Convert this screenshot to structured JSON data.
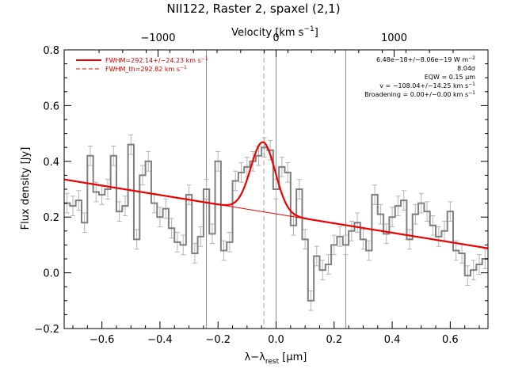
{
  "chart_data": {
    "type": "line",
    "title": "NII122, Raster 2, spaxel (2,1)",
    "xlabel": "λ−λ",
    "xlabel_sub": "rest",
    "xlabel_unit": " [μm]",
    "ylabel": "Flux density [Jy]",
    "top_axis_label": "Velocity [km s",
    "top_axis_label_sup": "−1",
    "top_axis_label_end": "]",
    "xlim": [
      -0.73,
      0.73
    ],
    "ylim": [
      -0.2,
      0.8
    ],
    "grid": false,
    "x_ticks": [
      -0.6,
      -0.4,
      -0.2,
      0.0,
      0.2,
      0.4,
      0.6
    ],
    "x_tick_labels": [
      "−0.6",
      "−0.4",
      "−0.2",
      "0.0",
      "0.2",
      "0.4",
      "0.6"
    ],
    "y_ticks": [
      -0.2,
      0.0,
      0.2,
      0.4,
      0.6,
      0.8
    ],
    "y_tick_labels": [
      "−0.2",
      "0.0",
      "0.2",
      "0.4",
      "0.6",
      "0.8"
    ],
    "top_ticks_velocity": [
      -1000,
      0,
      1000
    ],
    "top_tick_labels": [
      "−1000",
      "0",
      "1000"
    ],
    "line_rest_wavelength_um": 121.9,
    "vertical_lines": {
      "solid": [
        -0.24,
        0.0,
        0.24
      ],
      "dashed": [
        -0.042
      ]
    },
    "series": [
      {
        "style": "histogram",
        "color": "#808080",
        "bin_width": 0.02,
        "x": [
          -0.72,
          -0.7,
          -0.68,
          -0.66,
          -0.64,
          -0.62,
          -0.6,
          -0.58,
          -0.56,
          -0.54,
          -0.52,
          -0.5,
          -0.48,
          -0.46,
          -0.44,
          -0.42,
          -0.4,
          -0.38,
          -0.36,
          -0.34,
          -0.32,
          -0.3,
          -0.28,
          -0.26,
          -0.24,
          -0.22,
          -0.2,
          -0.18,
          -0.16,
          -0.14,
          -0.12,
          -0.1,
          -0.08,
          -0.06,
          -0.04,
          -0.02,
          0.0,
          0.02,
          0.04,
          0.06,
          0.08,
          0.1,
          0.12,
          0.14,
          0.16,
          0.18,
          0.2,
          0.22,
          0.24,
          0.26,
          0.28,
          0.3,
          0.32,
          0.34,
          0.36,
          0.38,
          0.4,
          0.42,
          0.44,
          0.46,
          0.48,
          0.5,
          0.52,
          0.54,
          0.56,
          0.58,
          0.6,
          0.62,
          0.64,
          0.66,
          0.68,
          0.7,
          0.72
        ],
        "y": [
          0.25,
          0.24,
          0.26,
          0.18,
          0.42,
          0.29,
          0.28,
          0.3,
          0.42,
          0.22,
          0.24,
          0.46,
          0.12,
          0.35,
          0.4,
          0.25,
          0.2,
          0.23,
          0.16,
          0.11,
          0.1,
          0.28,
          0.07,
          0.13,
          0.3,
          0.14,
          0.4,
          0.08,
          0.11,
          0.33,
          0.36,
          0.38,
          0.4,
          0.42,
          0.45,
          0.44,
          0.3,
          0.38,
          0.36,
          0.17,
          0.3,
          0.12,
          -0.1,
          0.06,
          0.01,
          0.03,
          0.1,
          0.13,
          0.1,
          0.15,
          0.18,
          0.12,
          0.08,
          0.28,
          0.21,
          0.14,
          0.2,
          0.24,
          0.26,
          0.12,
          0.21,
          0.25,
          0.22,
          0.17,
          0.13,
          0.15,
          0.22,
          0.08,
          0.07,
          -0.01,
          0.01,
          0.03,
          0.05
        ],
        "error": 0.035
      },
      {
        "style": "thin",
        "color": "#ee0000",
        "model": "continuum",
        "x": [
          -0.73,
          0.73
        ],
        "y_at_ends": [
          0.335,
          0.088
        ]
      },
      {
        "style": "thick",
        "color": "#ee0000",
        "model": "gaussian+continuum",
        "center": -0.045,
        "sigma": 0.042,
        "amplitude": 0.25
      }
    ],
    "legend": {
      "placement": "top-left",
      "entries": [
        {
          "label": "FWHM=292.14+/−24.23 km s",
          "sup": "−1",
          "line": "solid"
        },
        {
          "label": "FWHM_th=292.82 km s",
          "sup": "−1",
          "line": "dashed"
        }
      ]
    },
    "annotations": [
      {
        "text": "6.48e−18+/−8.06e−19 W m",
        "sup": "−2"
      },
      {
        "text": "8.04σ",
        "sup": ""
      },
      {
        "text": "EQW = 0.15 μm",
        "sup": ""
      },
      {
        "text": "v = −108.04+/−14.25 km s",
        "sup": "−1"
      },
      {
        "text": "Broadening = 0.00+/−0.00 km s",
        "sup": "−1"
      }
    ]
  }
}
